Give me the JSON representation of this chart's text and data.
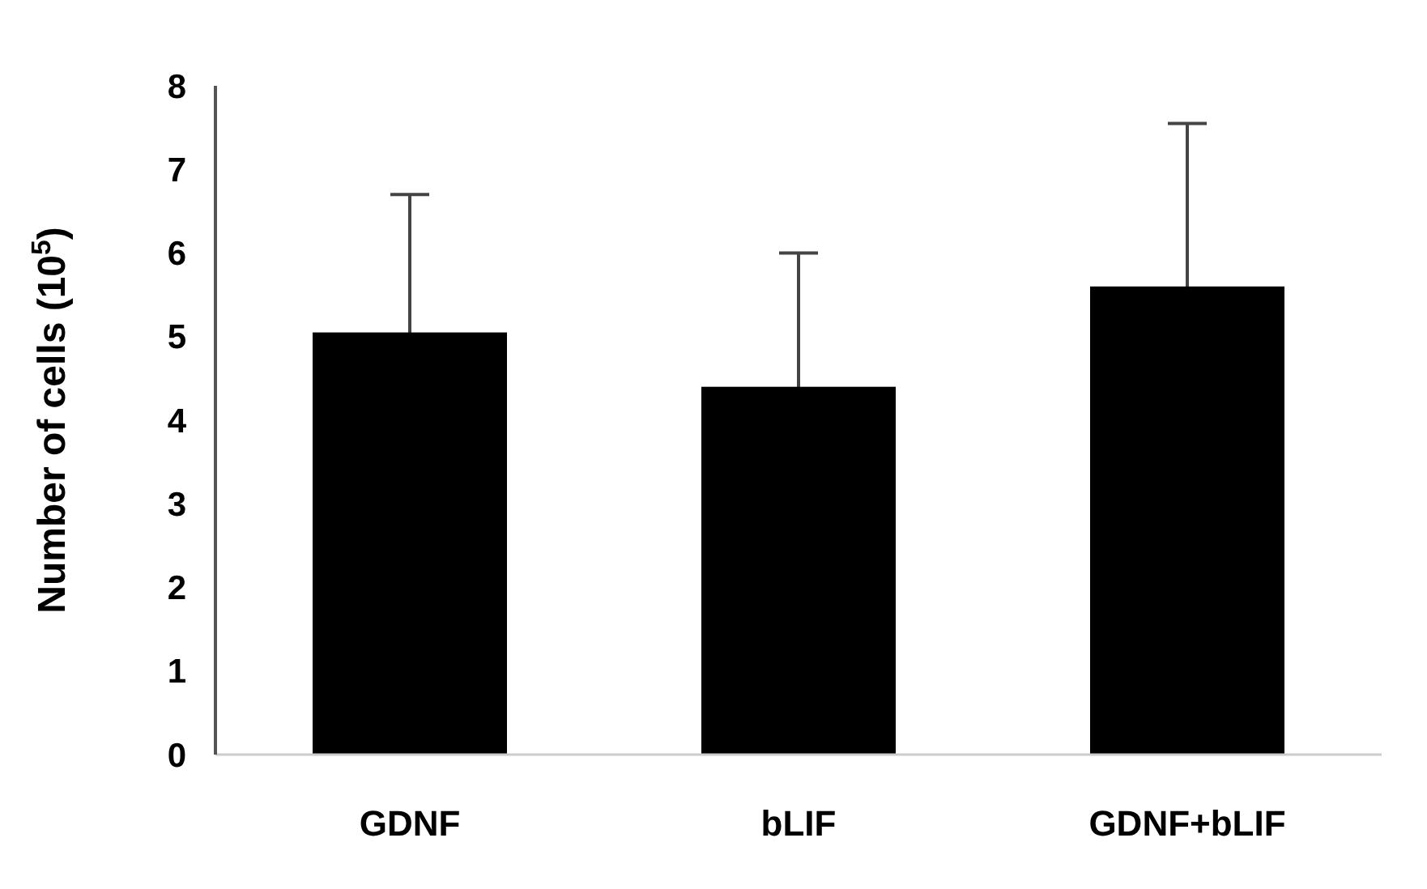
{
  "chart_data": {
    "type": "bar",
    "ylabel": "Number of cells (10$^{5}$)",
    "categories": [
      "GDNF",
      "bLIF",
      "GDNF+bLIF"
    ],
    "values": [
      5.05,
      4.4,
      5.6
    ],
    "errors": [
      1.65,
      1.6,
      1.95
    ],
    "color": "#000000",
    "ylim": [
      0,
      8
    ],
    "yticks": [
      0,
      1,
      2,
      3,
      4,
      5,
      6,
      7,
      8
    ],
    "grid": false
  }
}
